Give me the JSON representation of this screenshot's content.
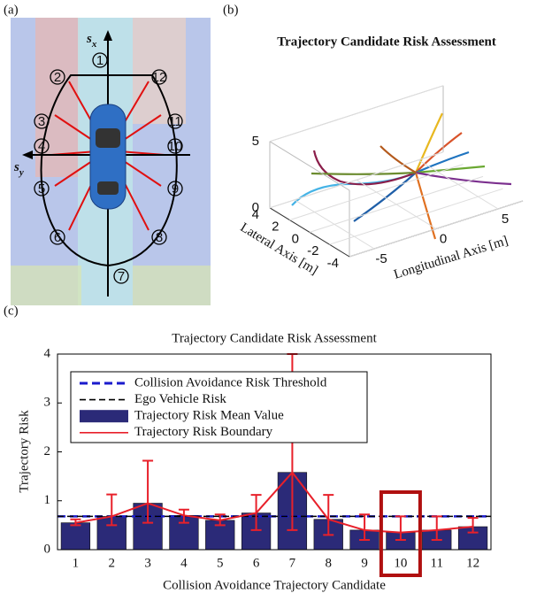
{
  "panel_labels": [
    "(a)",
    "(b)",
    "(c)"
  ],
  "diagram": {
    "x_axis": {
      "symbol": "s",
      "sub": "x"
    },
    "y_axis": {
      "symbol": "s",
      "sub": "y"
    },
    "candidates": [
      "1",
      "2",
      "3",
      "4",
      "5",
      "6",
      "7",
      "8",
      "9",
      "10",
      "11",
      "12"
    ]
  },
  "chart_data": [
    {
      "type": "line3d",
      "title": "Trajectory Candidate Risk Assessment",
      "xlabel": "Longitudinal Axis [m]",
      "ylabel": "Lateral Axis [m]",
      "xlim": [
        -7,
        7
      ],
      "xticks": [
        -5,
        0,
        5
      ],
      "ylim": [
        -4,
        4
      ],
      "yticks": [
        4,
        2,
        0,
        -2,
        -4
      ],
      "zlim": [
        0,
        5
      ],
      "zticks": [
        0,
        5
      ]
    },
    {
      "type": "bar",
      "title": "Trajectory Candidate Risk Assessment",
      "xlabel": "Collision Avoidance Trajectory Candidate",
      "ylabel": "Trajectory Risk",
      "categories": [
        "1",
        "2",
        "3",
        "4",
        "5",
        "6",
        "7",
        "8",
        "9",
        "10",
        "11",
        "12"
      ],
      "ylim": [
        0,
        4
      ],
      "yticks": [
        0,
        1,
        2,
        3,
        4
      ],
      "legend": "upper-left",
      "highlight": {
        "category": "10",
        "color": "#b01010"
      },
      "series": [
        {
          "name": "Collision Avoidance Risk Threshold",
          "kind": "hline",
          "value": 0.68,
          "color": "#1a1acc",
          "dash": "9,5"
        },
        {
          "name": "Ego Vehicle Risk",
          "kind": "hline",
          "value": 0.68,
          "color": "#000000",
          "dash": "7,4"
        },
        {
          "name": "Trajectory Risk Mean Value",
          "kind": "bar",
          "color": "#2b2a78",
          "values": [
            0.55,
            0.68,
            0.95,
            0.7,
            0.6,
            0.75,
            1.58,
            0.62,
            0.4,
            0.35,
            0.4,
            0.47
          ]
        },
        {
          "name": "Trajectory Risk Boundary",
          "kind": "errorline",
          "color": "#e8202a",
          "values": [
            0.55,
            0.68,
            0.95,
            0.7,
            0.6,
            0.75,
            1.58,
            0.62,
            0.4,
            0.35,
            0.4,
            0.47
          ],
          "lower": [
            0.5,
            0.5,
            0.55,
            0.55,
            0.5,
            0.4,
            0.4,
            0.3,
            0.2,
            0.2,
            0.2,
            0.35
          ],
          "upper": [
            0.62,
            1.13,
            1.82,
            0.82,
            0.72,
            1.12,
            4.0,
            1.12,
            0.72,
            0.68,
            0.68,
            0.65
          ]
        }
      ]
    }
  ]
}
